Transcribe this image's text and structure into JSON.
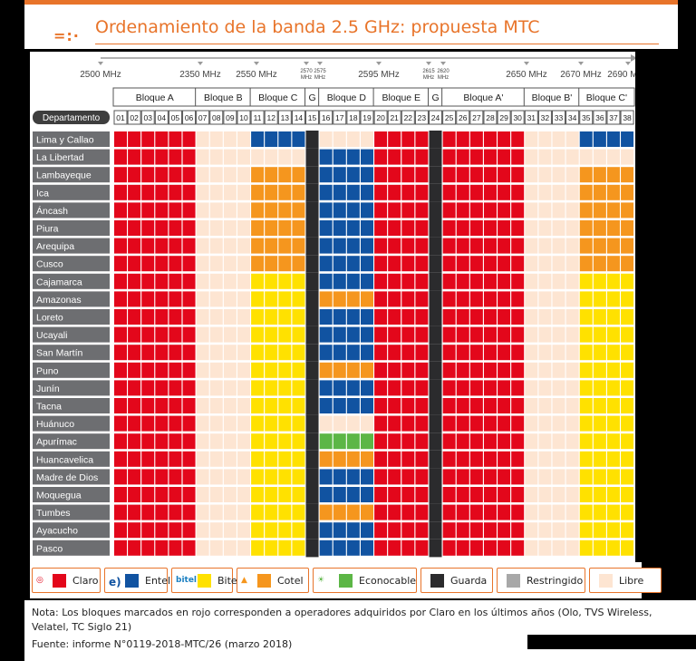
{
  "title": "Ordenamiento de la banda 2.5 GHz: propuesta MTC",
  "header_icon": "=:·",
  "chart_data": {
    "type": "table",
    "title": "Ordenamiento de la banda 2.5 GHz: propuesta MTC",
    "frequency_marks": [
      "2500 MHz",
      "2350 MHz",
      "2550 MHz",
      "2570 MHz",
      "2575 MHz",
      "2595 MHz",
      "2615 MHz",
      "2620 MHz",
      "2650 MHz",
      "2670 MHz",
      "2690 MHz"
    ],
    "blocks": [
      {
        "label": "Bloque A",
        "start": 1,
        "end": 6
      },
      {
        "label": "Bloque B",
        "start": 7,
        "end": 10
      },
      {
        "label": "Bloque C",
        "start": 11,
        "end": 14
      },
      {
        "label": "G",
        "start": 15,
        "end": 15
      },
      {
        "label": "Bloque D",
        "start": 16,
        "end": 19
      },
      {
        "label": "Bloque E",
        "start": 20,
        "end": 23
      },
      {
        "label": "G",
        "start": 24,
        "end": 24
      },
      {
        "label": "Bloque A'",
        "start": 25,
        "end": 30
      },
      {
        "label": "Bloque B'",
        "start": 31,
        "end": 34
      },
      {
        "label": "Bloque C'",
        "start": 35,
        "end": 38
      }
    ],
    "column_header_label": "Departamento",
    "columns": [
      "01",
      "02",
      "03",
      "04",
      "05",
      "06",
      "07",
      "08",
      "09",
      "10",
      "11",
      "12",
      "13",
      "14",
      "15",
      "16",
      "17",
      "18",
      "19",
      "20",
      "21",
      "22",
      "23",
      "24",
      "25",
      "26",
      "27",
      "28",
      "29",
      "30",
      "31",
      "32",
      "33",
      "34",
      "35",
      "36",
      "37",
      "38"
    ],
    "operators": {
      "claro": {
        "name": "Claro",
        "color": "#e3071b"
      },
      "entel": {
        "name": "Entel",
        "color": "#1153a1"
      },
      "bitel": {
        "name": "Bitel",
        "color": "#ffe100"
      },
      "cotel": {
        "name": "Cotel",
        "color": "#f5961e"
      },
      "econocable": {
        "name": "Econocable",
        "color": "#5cb646"
      },
      "guarda": {
        "name": "Guarda",
        "color": "#2b2b2d"
      },
      "restringido": {
        "name": "Restringido",
        "color": "#a8a8a8"
      },
      "libre": {
        "name": "Libre",
        "color": "#fde5d2"
      }
    },
    "regions": [
      {
        "name": "Lima y Callao",
        "C": "entel",
        "D": "libre",
        "Cp": "entel"
      },
      {
        "name": "La Libertad",
        "C": "libre",
        "D": "entel",
        "Cp": "libre"
      },
      {
        "name": "Lambayeque",
        "C": "cotel",
        "D": "entel",
        "Cp": "cotel"
      },
      {
        "name": "Ica",
        "C": "cotel",
        "D": "entel",
        "Cp": "cotel"
      },
      {
        "name": "Áncash",
        "C": "cotel",
        "D": "entel",
        "Cp": "cotel"
      },
      {
        "name": "Piura",
        "C": "cotel",
        "D": "entel",
        "Cp": "cotel"
      },
      {
        "name": "Arequipa",
        "C": "cotel",
        "D": "entel",
        "Cp": "cotel"
      },
      {
        "name": "Cusco",
        "C": "cotel",
        "D": "entel",
        "Cp": "cotel"
      },
      {
        "name": "Cajamarca",
        "C": "bitel",
        "D": "entel",
        "Cp": "bitel"
      },
      {
        "name": "Amazonas",
        "C": "bitel",
        "D": "cotel",
        "Cp": "bitel"
      },
      {
        "name": "Loreto",
        "C": "bitel",
        "D": "entel",
        "Cp": "bitel"
      },
      {
        "name": "Ucayali",
        "C": "bitel",
        "D": "entel",
        "Cp": "bitel"
      },
      {
        "name": "San Martín",
        "C": "bitel",
        "D": "entel",
        "Cp": "bitel"
      },
      {
        "name": "Puno",
        "C": "bitel",
        "D": "cotel",
        "Cp": "bitel"
      },
      {
        "name": "Junín",
        "C": "bitel",
        "D": "entel",
        "Cp": "bitel"
      },
      {
        "name": "Tacna",
        "C": "bitel",
        "D": "entel",
        "Cp": "bitel"
      },
      {
        "name": "Huánuco",
        "C": "bitel",
        "D": "libre",
        "Cp": "bitel"
      },
      {
        "name": "Apurímac",
        "C": "bitel",
        "D": "econocable",
        "Cp": "bitel"
      },
      {
        "name": "Huancavelica",
        "C": "bitel",
        "D": "cotel",
        "Cp": "bitel"
      },
      {
        "name": "Madre de Dios",
        "C": "bitel",
        "D": "entel",
        "Cp": "bitel"
      },
      {
        "name": "Moquegua",
        "C": "bitel",
        "D": "entel",
        "Cp": "bitel"
      },
      {
        "name": "Tumbes",
        "C": "bitel",
        "D": "cotel",
        "Cp": "bitel"
      },
      {
        "name": "Ayacucho",
        "C": "bitel",
        "D": "entel",
        "Cp": "bitel"
      },
      {
        "name": "Pasco",
        "C": "bitel",
        "D": "entel",
        "Cp": "bitel"
      }
    ],
    "fixed_assignments": {
      "A": "claro",
      "B": "libre",
      "G": "guarda",
      "E": "claro",
      "Ap": "claro",
      "Bp": "libre"
    }
  },
  "legend": [
    {
      "key": "claro",
      "label": "Claro",
      "logo": "◎",
      "icon": "claro-logo-icon"
    },
    {
      "key": "entel",
      "label": "Entel",
      "logo": "e)",
      "icon": "entel-logo-icon"
    },
    {
      "key": "bitel",
      "label": "Bitel",
      "logo": "bitel",
      "icon": "bitel-logo-icon"
    },
    {
      "key": "cotel",
      "label": "Cotel",
      "logo": "▲",
      "icon": "cotel-logo-icon"
    },
    {
      "key": "econocable",
      "label": "Econocable",
      "logo": "☀",
      "icon": "econocable-logo-icon"
    },
    {
      "key": "guarda",
      "label": "Guarda",
      "logo": "",
      "icon": ""
    },
    {
      "key": "restringido",
      "label": "Restringido",
      "logo": "",
      "icon": ""
    },
    {
      "key": "libre",
      "label": "Libre",
      "logo": "",
      "icon": ""
    }
  ],
  "note": "Nota: Los bloques marcados en rojo corresponden a operadores adquiridos por Claro en los últimos años (Olo, TVS Wireless, Velatel, TC Siglo 21)",
  "source": "Fuente: informe N°0119-2018-MTC/26 (marzo 2018)"
}
